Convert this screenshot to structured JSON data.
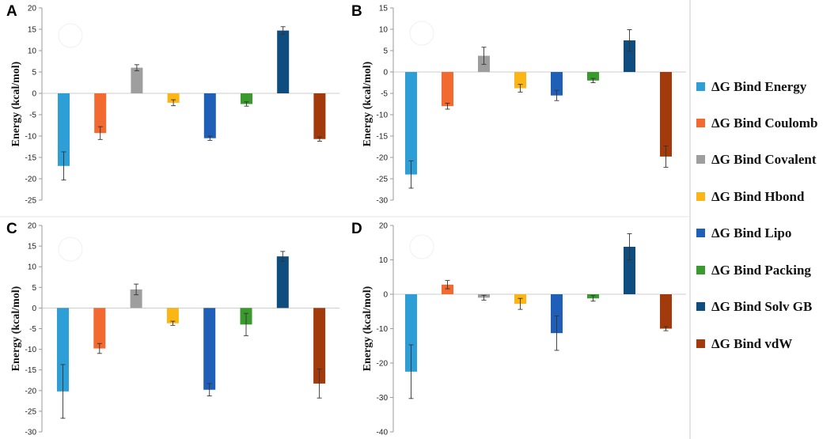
{
  "legend": {
    "items": [
      {
        "label": "ΔG Bind Energy",
        "color": "#2e9fd6"
      },
      {
        "label": "ΔG Bind Coulomb",
        "color": "#f26a2f"
      },
      {
        "label": "ΔG Bind Covalent",
        "color": "#9e9e9e"
      },
      {
        "label": "ΔG Bind Hbond",
        "color": "#fbb616"
      },
      {
        "label": "ΔG Bind Lipo",
        "color": "#1f5fb8"
      },
      {
        "label": "ΔG Bind Packing",
        "color": "#3a9a2e"
      },
      {
        "label": "ΔG Bind Solv GB",
        "color": "#0e4d7d"
      },
      {
        "label": "ΔG Bind vdW",
        "color": "#a33a0c"
      }
    ]
  },
  "chart_data": [
    {
      "panel": "A",
      "type": "bar",
      "ylabel": "Energy  (kcal/mol)",
      "ylim": [
        -25,
        20
      ],
      "yticks": [
        20,
        15,
        10,
        5,
        0,
        -5,
        -10,
        -15,
        -20,
        -25
      ],
      "series": [
        {
          "name": "ΔG Bind Energy",
          "value": -17.0,
          "error": 3.3
        },
        {
          "name": "ΔG Bind Coulomb",
          "value": -9.3,
          "error": 1.5
        },
        {
          "name": "ΔG Bind Covalent",
          "value": 6.0,
          "error": 0.7
        },
        {
          "name": "ΔG Bind Hbond",
          "value": -2.2,
          "error": 0.7
        },
        {
          "name": "ΔG Bind Lipo",
          "value": -10.5,
          "error": 0.5
        },
        {
          "name": "ΔG Bind Packing",
          "value": -2.5,
          "error": 0.5
        },
        {
          "name": "ΔG Bind Solv GB",
          "value": 14.7,
          "error": 0.9
        },
        {
          "name": "ΔG Bind vdW",
          "value": -10.7,
          "error": 0.5
        }
      ]
    },
    {
      "panel": "B",
      "type": "bar",
      "ylabel": "Energy  (kcal/mol)",
      "ylim": [
        -30,
        15
      ],
      "yticks": [
        15,
        10,
        5,
        0,
        -5,
        -10,
        -15,
        -20,
        -25,
        -30
      ],
      "series": [
        {
          "name": "ΔG Bind Energy",
          "value": -24.0,
          "error": 3.2
        },
        {
          "name": "ΔG Bind Coulomb",
          "value": -8.0,
          "error": 0.7
        },
        {
          "name": "ΔG Bind Covalent",
          "value": 3.8,
          "error": 2.0
        },
        {
          "name": "ΔG Bind Hbond",
          "value": -3.8,
          "error": 0.9
        },
        {
          "name": "ΔG Bind Lipo",
          "value": -5.5,
          "error": 1.2
        },
        {
          "name": "ΔG Bind Packing",
          "value": -2.0,
          "error": 0.5
        },
        {
          "name": "ΔG Bind Solv GB",
          "value": 7.4,
          "error": 2.5
        },
        {
          "name": "ΔG Bind vdW",
          "value": -19.8,
          "error": 2.5
        }
      ]
    },
    {
      "panel": "C",
      "type": "bar",
      "ylabel": "Energy  (kcal/mol)",
      "ylim": [
        -30,
        20
      ],
      "yticks": [
        20,
        15,
        10,
        5,
        0,
        -5,
        -10,
        -15,
        -20,
        -25,
        -30
      ],
      "series": [
        {
          "name": "ΔG Bind Energy",
          "value": -20.2,
          "error": 6.5
        },
        {
          "name": "ΔG Bind Coulomb",
          "value": -9.8,
          "error": 1.2
        },
        {
          "name": "ΔG Bind Covalent",
          "value": 4.5,
          "error": 1.3
        },
        {
          "name": "ΔG Bind Hbond",
          "value": -3.7,
          "error": 0.5
        },
        {
          "name": "ΔG Bind Lipo",
          "value": -19.8,
          "error": 1.5
        },
        {
          "name": "ΔG Bind Packing",
          "value": -4.0,
          "error": 2.7
        },
        {
          "name": "ΔG Bind Solv GB",
          "value": 12.5,
          "error": 1.2
        },
        {
          "name": "ΔG Bind vdW",
          "value": -18.3,
          "error": 3.5
        }
      ]
    },
    {
      "panel": "D",
      "type": "bar",
      "ylabel": "Energy  (kcal/mol)",
      "ylim": [
        -40,
        20
      ],
      "yticks": [
        20,
        10,
        0,
        -10,
        -20,
        -30,
        -40
      ],
      "series": [
        {
          "name": "ΔG Bind Energy",
          "value": -22.5,
          "error": 7.8
        },
        {
          "name": "ΔG Bind Coulomb",
          "value": 2.8,
          "error": 1.2
        },
        {
          "name": "ΔG Bind Covalent",
          "value": -1.0,
          "error": 0.7
        },
        {
          "name": "ΔG Bind Hbond",
          "value": -2.8,
          "error": 1.6
        },
        {
          "name": "ΔG Bind Lipo",
          "value": -11.3,
          "error": 5.0
        },
        {
          "name": "ΔG Bind Packing",
          "value": -1.2,
          "error": 0.8
        },
        {
          "name": "ΔG Bind Solv GB",
          "value": 13.8,
          "error": 3.8
        },
        {
          "name": "ΔG Bind vdW",
          "value": -10.0,
          "error": 0.6
        }
      ]
    }
  ]
}
